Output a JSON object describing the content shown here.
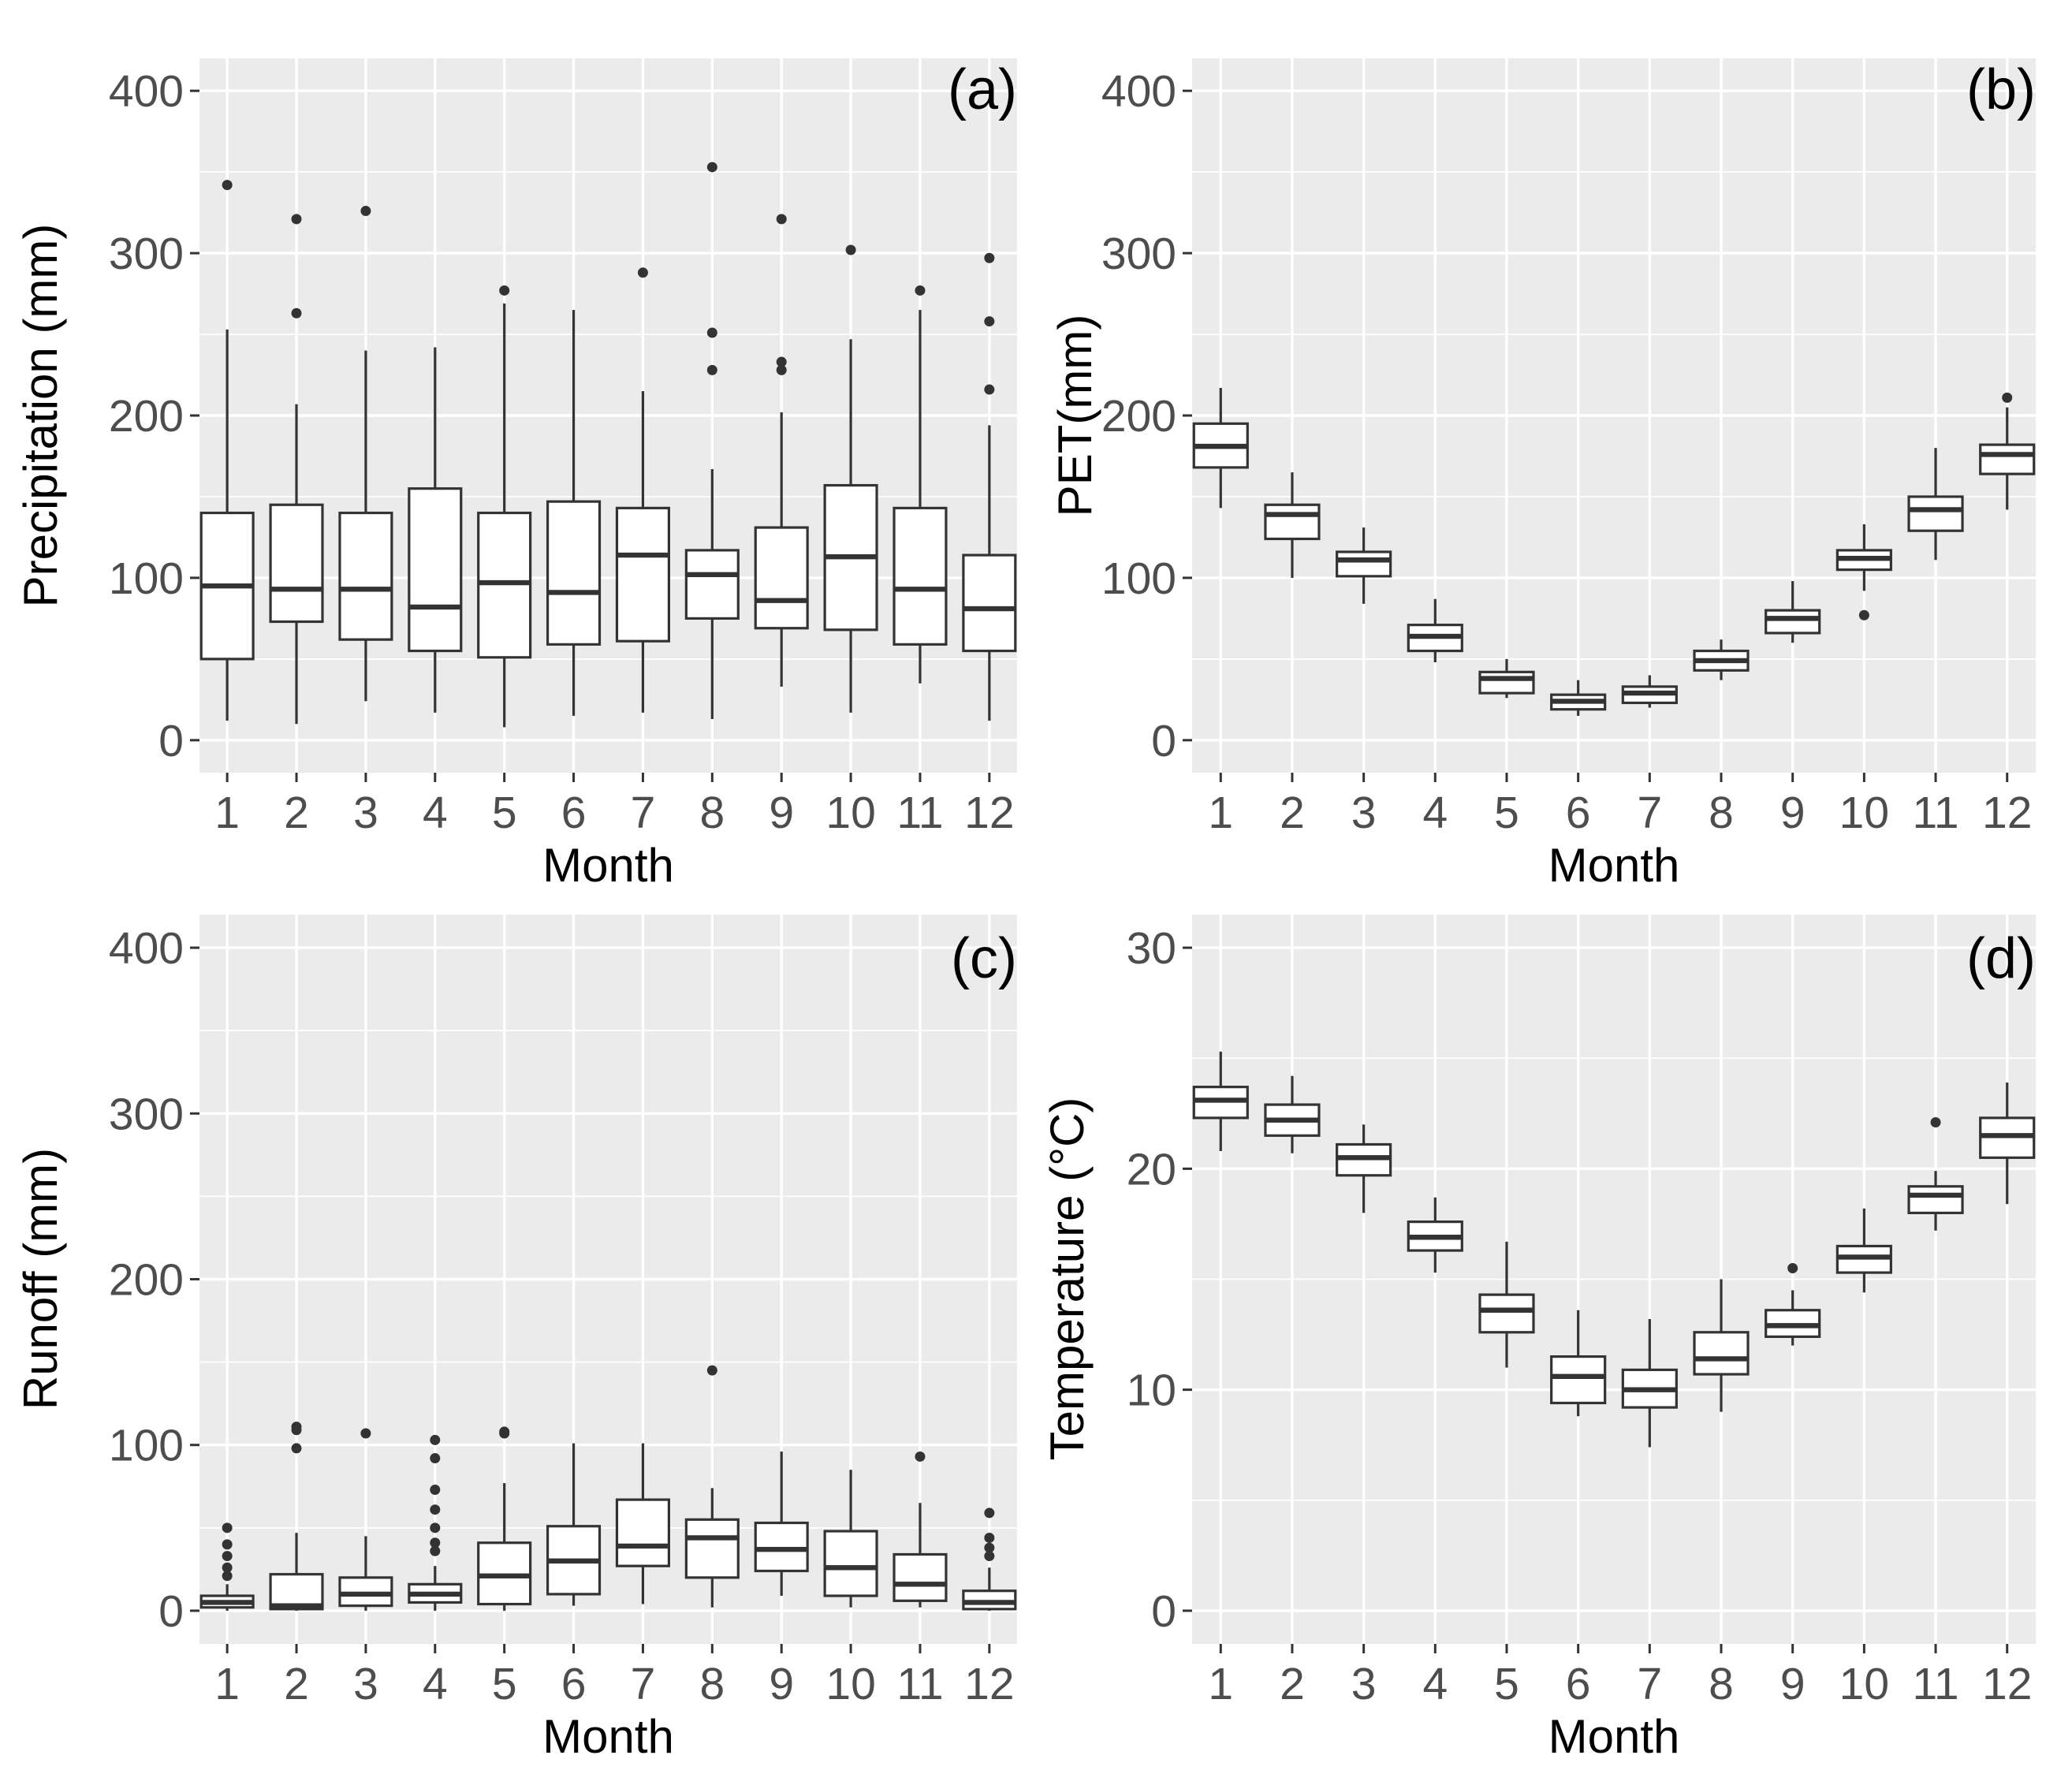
{
  "figure": {
    "x_tick_labels": [
      "1",
      "2",
      "3",
      "4",
      "5",
      "6",
      "7",
      "8",
      "9",
      "10",
      "11",
      "12"
    ]
  },
  "chart_data": [
    {
      "id": "a",
      "type": "boxplot",
      "tag": "(a)",
      "xlabel": "Month",
      "ylabel": "Precipitation (mm)",
      "ylim": [
        -20,
        420
      ],
      "yticks": [
        0,
        100,
        200,
        300,
        400
      ],
      "ytick_labels": [
        "0",
        "100",
        "200",
        "300",
        "400"
      ],
      "boxes": [
        {
          "month": "1",
          "low": 12,
          "q1": 50,
          "median": 95,
          "q3": 140,
          "high": 253,
          "outliers": [
            342
          ]
        },
        {
          "month": "2",
          "low": 10,
          "q1": 73,
          "median": 93,
          "q3": 145,
          "high": 207,
          "outliers": [
            263,
            321
          ]
        },
        {
          "month": "3",
          "low": 24,
          "q1": 62,
          "median": 93,
          "q3": 140,
          "high": 240,
          "outliers": [
            326
          ]
        },
        {
          "month": "4",
          "low": 17,
          "q1": 55,
          "median": 82,
          "q3": 155,
          "high": 242,
          "outliers": []
        },
        {
          "month": "5",
          "low": 8,
          "q1": 51,
          "median": 97,
          "q3": 140,
          "high": 269,
          "outliers": [
            277
          ]
        },
        {
          "month": "6",
          "low": 15,
          "q1": 59,
          "median": 91,
          "q3": 147,
          "high": 265,
          "outliers": []
        },
        {
          "month": "7",
          "low": 17,
          "q1": 61,
          "median": 114,
          "q3": 143,
          "high": 215,
          "outliers": [
            288
          ]
        },
        {
          "month": "8",
          "low": 13,
          "q1": 75,
          "median": 102,
          "q3": 117,
          "high": 167,
          "outliers": [
            228,
            251,
            353
          ]
        },
        {
          "month": "9",
          "low": 33,
          "q1": 69,
          "median": 86,
          "q3": 131,
          "high": 202,
          "outliers": [
            228,
            233,
            321
          ]
        },
        {
          "month": "10",
          "low": 17,
          "q1": 68,
          "median": 113,
          "q3": 157,
          "high": 247,
          "outliers": [
            302
          ]
        },
        {
          "month": "11",
          "low": 35,
          "q1": 59,
          "median": 93,
          "q3": 143,
          "high": 265,
          "outliers": [
            277
          ]
        },
        {
          "month": "12",
          "low": 12,
          "q1": 55,
          "median": 81,
          "q3": 114,
          "high": 194,
          "outliers": [
            216,
            258,
            297
          ]
        }
      ]
    },
    {
      "id": "b",
      "type": "boxplot",
      "tag": "(b)",
      "xlabel": "Month",
      "ylabel": "PET(mm)",
      "ylim": [
        -20,
        420
      ],
      "yticks": [
        0,
        100,
        200,
        300,
        400
      ],
      "ytick_labels": [
        "0",
        "100",
        "200",
        "300",
        "400"
      ],
      "boxes": [
        {
          "month": "1",
          "low": 143,
          "q1": 168,
          "median": 181,
          "q3": 195,
          "high": 217,
          "outliers": []
        },
        {
          "month": "2",
          "low": 100,
          "q1": 124,
          "median": 139,
          "q3": 145,
          "high": 165,
          "outliers": []
        },
        {
          "month": "3",
          "low": 84,
          "q1": 101,
          "median": 111,
          "q3": 116,
          "high": 131,
          "outliers": []
        },
        {
          "month": "4",
          "low": 48,
          "q1": 55,
          "median": 64,
          "q3": 71,
          "high": 87,
          "outliers": []
        },
        {
          "month": "5",
          "low": 26,
          "q1": 29,
          "median": 38,
          "q3": 42,
          "high": 50,
          "outliers": []
        },
        {
          "month": "6",
          "low": 15,
          "q1": 19,
          "median": 24,
          "q3": 28,
          "high": 37,
          "outliers": []
        },
        {
          "month": "7",
          "low": 20,
          "q1": 23,
          "median": 29,
          "q3": 33,
          "high": 40,
          "outliers": []
        },
        {
          "month": "8",
          "low": 37,
          "q1": 43,
          "median": 49,
          "q3": 55,
          "high": 62,
          "outliers": []
        },
        {
          "month": "9",
          "low": 60,
          "q1": 66,
          "median": 75,
          "q3": 80,
          "high": 98,
          "outliers": []
        },
        {
          "month": "10",
          "low": 92,
          "q1": 105,
          "median": 112,
          "q3": 117,
          "high": 133,
          "outliers": [
            77
          ]
        },
        {
          "month": "11",
          "low": 111,
          "q1": 129,
          "median": 142,
          "q3": 150,
          "high": 180,
          "outliers": []
        },
        {
          "month": "12",
          "low": 142,
          "q1": 164,
          "median": 176,
          "q3": 182,
          "high": 205,
          "outliers": [
            211
          ]
        }
      ]
    },
    {
      "id": "c",
      "type": "boxplot",
      "tag": "(c)",
      "xlabel": "Month",
      "ylabel": "Runoff (mm)",
      "ylim": [
        -20,
        420
      ],
      "yticks": [
        0,
        100,
        200,
        300,
        400
      ],
      "ytick_labels": [
        "0",
        "100",
        "200",
        "300",
        "400"
      ],
      "boxes": [
        {
          "month": "1",
          "low": 0,
          "q1": 2,
          "median": 5,
          "q3": 9,
          "high": 16,
          "outliers": [
            21,
            26,
            33,
            40,
            50
          ]
        },
        {
          "month": "2",
          "low": 0,
          "q1": 1,
          "median": 3,
          "q3": 22,
          "high": 47,
          "outliers": [
            98,
            109,
            111
          ]
        },
        {
          "month": "3",
          "low": 0,
          "q1": 3,
          "median": 10,
          "q3": 20,
          "high": 45,
          "outliers": [
            107
          ]
        },
        {
          "month": "4",
          "low": 0,
          "q1": 5,
          "median": 10,
          "q3": 16,
          "high": 27,
          "outliers": [
            36,
            41,
            50,
            61,
            73,
            92,
            103
          ]
        },
        {
          "month": "5",
          "low": 0,
          "q1": 4,
          "median": 21,
          "q3": 41,
          "high": 77,
          "outliers": [
            107,
            108
          ]
        },
        {
          "month": "6",
          "low": 3,
          "q1": 10,
          "median": 30,
          "q3": 51,
          "high": 101,
          "outliers": []
        },
        {
          "month": "7",
          "low": 4,
          "q1": 27,
          "median": 39,
          "q3": 67,
          "high": 101,
          "outliers": []
        },
        {
          "month": "8",
          "low": 2,
          "q1": 20,
          "median": 44,
          "q3": 55,
          "high": 74,
          "outliers": [
            145
          ]
        },
        {
          "month": "9",
          "low": 9,
          "q1": 24,
          "median": 37,
          "q3": 53,
          "high": 96,
          "outliers": []
        },
        {
          "month": "10",
          "low": 2,
          "q1": 9,
          "median": 26,
          "q3": 48,
          "high": 85,
          "outliers": []
        },
        {
          "month": "11",
          "low": 2,
          "q1": 6,
          "median": 16,
          "q3": 34,
          "high": 65,
          "outliers": [
            93
          ]
        },
        {
          "month": "12",
          "low": 0,
          "q1": 1,
          "median": 5,
          "q3": 12,
          "high": 26,
          "outliers": [
            33,
            38,
            44,
            59
          ]
        }
      ]
    },
    {
      "id": "d",
      "type": "boxplot",
      "tag": "(d)",
      "xlabel": "Month",
      "ylabel": "Temperature (°C)",
      "ylim": [
        -1.5,
        31.5
      ],
      "yticks": [
        0,
        10,
        20,
        30
      ],
      "ytick_labels": [
        "0",
        "10",
        "20",
        "30"
      ],
      "boxes": [
        {
          "month": "1",
          "low": 20.8,
          "q1": 22.3,
          "median": 23.1,
          "q3": 23.7,
          "high": 25.3,
          "outliers": []
        },
        {
          "month": "2",
          "low": 20.7,
          "q1": 21.5,
          "median": 22.2,
          "q3": 22.9,
          "high": 24.2,
          "outliers": []
        },
        {
          "month": "3",
          "low": 18.0,
          "q1": 19.7,
          "median": 20.5,
          "q3": 21.1,
          "high": 22.0,
          "outliers": []
        },
        {
          "month": "4",
          "low": 15.3,
          "q1": 16.3,
          "median": 16.9,
          "q3": 17.6,
          "high": 18.7,
          "outliers": []
        },
        {
          "month": "5",
          "low": 11.0,
          "q1": 12.6,
          "median": 13.6,
          "q3": 14.3,
          "high": 16.7,
          "outliers": []
        },
        {
          "month": "6",
          "low": 8.8,
          "q1": 9.4,
          "median": 10.6,
          "q3": 11.5,
          "high": 13.6,
          "outliers": []
        },
        {
          "month": "7",
          "low": 7.4,
          "q1": 9.2,
          "median": 10.0,
          "q3": 10.9,
          "high": 13.2,
          "outliers": []
        },
        {
          "month": "8",
          "low": 9.0,
          "q1": 10.7,
          "median": 11.4,
          "q3": 12.6,
          "high": 15.0,
          "outliers": []
        },
        {
          "month": "9",
          "low": 12.0,
          "q1": 12.4,
          "median": 12.9,
          "q3": 13.6,
          "high": 14.5,
          "outliers": [
            15.5
          ]
        },
        {
          "month": "10",
          "low": 14.4,
          "q1": 15.3,
          "median": 16.0,
          "q3": 16.5,
          "high": 18.2,
          "outliers": []
        },
        {
          "month": "11",
          "low": 17.2,
          "q1": 18.0,
          "median": 18.8,
          "q3": 19.2,
          "high": 19.9,
          "outliers": [
            22.1
          ]
        },
        {
          "month": "12",
          "low": 18.4,
          "q1": 20.5,
          "median": 21.5,
          "q3": 22.3,
          "high": 23.9,
          "outliers": []
        }
      ]
    }
  ]
}
